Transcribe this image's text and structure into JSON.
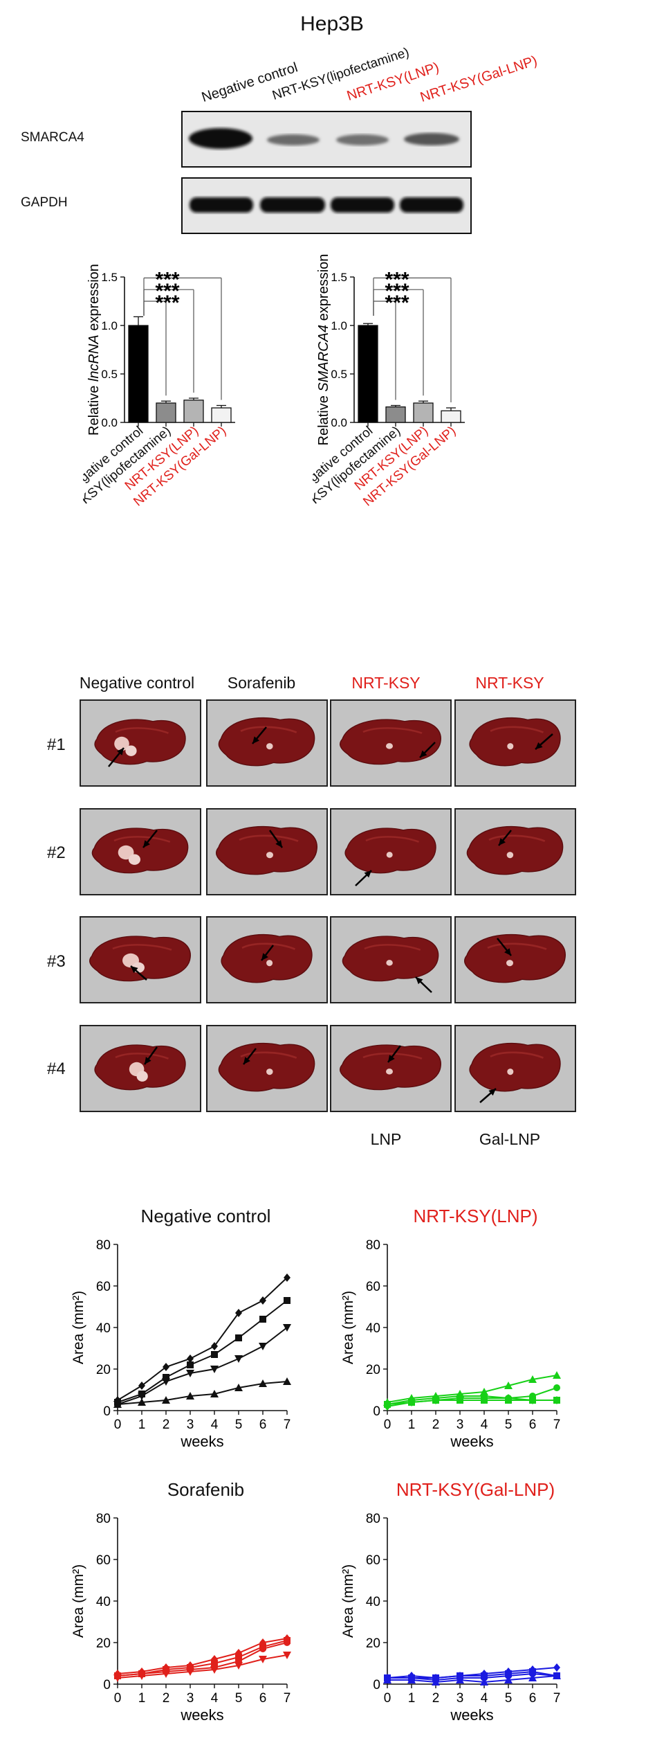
{
  "western": {
    "cell_line": "Hep3B",
    "lanes": [
      {
        "label": "Negative control",
        "color": "#111111"
      },
      {
        "label": "NRT-KSY(lipofectamine)",
        "color": "#111111"
      },
      {
        "label": "NRT-KSY(LNP)",
        "color": "#e0201b"
      },
      {
        "label": "NRT-KSY(Gal-LNP)",
        "color": "#e0201b"
      }
    ],
    "rows": [
      {
        "label": "SMARCA4",
        "band_strength": [
          1.0,
          0.3,
          0.3,
          0.4
        ]
      },
      {
        "label": "GAPDH",
        "band_strength": [
          1.0,
          1.0,
          1.0,
          1.0
        ]
      }
    ]
  },
  "images": {
    "column_headers": [
      "Negative control",
      "Sorafenib",
      "NRT-KSY",
      "NRT-KSY"
    ],
    "column_header_colors": [
      "#111111",
      "#111111",
      "#e0201b",
      "#e0201b"
    ],
    "row_labels": [
      "#1",
      "#2",
      "#3",
      "#4"
    ],
    "footer_labels": [
      "",
      "",
      "LNP",
      "Gal-LNP"
    ]
  },
  "chart_data": [
    {
      "type": "bar",
      "ylabel_pre": "Relative ",
      "ylabel_italic": "lncRNA",
      "ylabel_post": " expression",
      "categories": [
        "Negative control",
        "NRT-KSY(lipofectamine)",
        "NRT-KSY(LNP)",
        "NRT-KSY(Gal-LNP)"
      ],
      "category_colors": [
        "#111111",
        "#111111",
        "#e0201b",
        "#e0201b"
      ],
      "values": [
        1.0,
        0.2,
        0.23,
        0.15
      ],
      "errors": [
        0.09,
        0.02,
        0.02,
        0.025
      ],
      "bar_fills": [
        "#000000",
        "#8c8c8c",
        "#b4b4b4",
        "#f2f2f2"
      ],
      "ylim": [
        0,
        1.5
      ],
      "yticks": [
        "0.0",
        "0.5",
        "1.0",
        "1.5"
      ],
      "significance": [
        "***",
        "***",
        "***"
      ]
    },
    {
      "type": "bar",
      "ylabel_pre": "Relative ",
      "ylabel_italic": "SMARCA4",
      "ylabel_post": " expression",
      "categories": [
        "Negative control",
        "NRT-KSY(lipofectamine)",
        "NRT-KSY(LNP)",
        "NRT-KSY(Gal-LNP)"
      ],
      "category_colors": [
        "#111111",
        "#111111",
        "#e0201b",
        "#e0201b"
      ],
      "values": [
        1.0,
        0.16,
        0.2,
        0.12
      ],
      "errors": [
        0.02,
        0.015,
        0.02,
        0.03
      ],
      "bar_fills": [
        "#000000",
        "#8c8c8c",
        "#b4b4b4",
        "#f2f2f2"
      ],
      "ylim": [
        0,
        1.5
      ],
      "yticks": [
        "0.0",
        "0.5",
        "1.0",
        "1.5"
      ],
      "significance": [
        "***",
        "***",
        "***"
      ]
    },
    {
      "type": "line",
      "title": "Negative control",
      "title_color": "#111111",
      "series_color": "#111111",
      "x": [
        0,
        1,
        2,
        3,
        4,
        5,
        6,
        7
      ],
      "xlabel": "weeks",
      "ylabel": "Area (mm²)",
      "ylim": [
        0,
        80
      ],
      "yticks": [
        "0",
        "20",
        "40",
        "60",
        "80"
      ],
      "series": [
        {
          "marker": "diamond",
          "values": [
            5,
            12,
            21,
            25,
            31,
            47,
            53,
            64
          ]
        },
        {
          "marker": "square",
          "values": [
            4,
            8,
            16,
            22,
            27,
            35,
            44,
            53
          ]
        },
        {
          "marker": "tri-down",
          "values": [
            3,
            7,
            14,
            18,
            20,
            25,
            31,
            40
          ]
        },
        {
          "marker": "tri-up",
          "values": [
            3,
            4,
            5,
            7,
            8,
            11,
            13,
            14
          ]
        }
      ]
    },
    {
      "type": "line",
      "title": "NRT-KSY(LNP)",
      "title_color": "#e0201b",
      "series_color": "#17d017",
      "x": [
        0,
        1,
        2,
        3,
        4,
        5,
        6,
        7
      ],
      "xlabel": "weeks",
      "ylabel": "Area (mm²)",
      "ylim": [
        0,
        80
      ],
      "yticks": [
        "0",
        "20",
        "40",
        "60",
        "80"
      ],
      "series": [
        {
          "marker": "tri-up",
          "values": [
            4,
            6,
            7,
            8,
            9,
            12,
            15,
            17
          ]
        },
        {
          "marker": "circle",
          "values": [
            3,
            5,
            6,
            7,
            7,
            6,
            7,
            11
          ]
        },
        {
          "marker": "square",
          "values": [
            3,
            4,
            5,
            5,
            5,
            5,
            5,
            5
          ]
        },
        {
          "marker": "diamond",
          "values": [
            2,
            4,
            5,
            6,
            6,
            6,
            5,
            5
          ]
        }
      ]
    },
    {
      "type": "line",
      "title": "Sorafenib",
      "title_color": "#111111",
      "series_color": "#e0201b",
      "x": [
        0,
        1,
        2,
        3,
        4,
        5,
        6,
        7
      ],
      "xlabel": "weeks",
      "ylabel": "Area (mm²)",
      "ylim": [
        0,
        80
      ],
      "yticks": [
        "0",
        "20",
        "40",
        "60",
        "80"
      ],
      "series": [
        {
          "marker": "diamond",
          "values": [
            5,
            6,
            8,
            9,
            12,
            15,
            20,
            22
          ]
        },
        {
          "marker": "square",
          "values": [
            4,
            5,
            7,
            8,
            10,
            13,
            18,
            21
          ]
        },
        {
          "marker": "circle",
          "values": [
            4,
            5,
            6,
            7,
            8,
            11,
            17,
            20
          ]
        },
        {
          "marker": "tri-down",
          "values": [
            3,
            4,
            5,
            6,
            7,
            9,
            12,
            14
          ]
        }
      ]
    },
    {
      "type": "line",
      "title": "NRT-KSY(Gal-LNP)",
      "title_color": "#e0201b",
      "series_color": "#1a1ae0",
      "x": [
        0,
        1,
        2,
        3,
        4,
        5,
        6,
        7
      ],
      "xlabel": "weeks",
      "ylabel": "Area (mm²)",
      "ylim": [
        0,
        80
      ],
      "yticks": [
        "0",
        "20",
        "40",
        "60",
        "80"
      ],
      "series": [
        {
          "marker": "diamond",
          "values": [
            3,
            4,
            3,
            4,
            5,
            6,
            7,
            8
          ]
        },
        {
          "marker": "square",
          "values": [
            3,
            3,
            3,
            4,
            4,
            5,
            6,
            4
          ]
        },
        {
          "marker": "circle",
          "values": [
            3,
            3,
            2,
            3,
            3,
            4,
            5,
            4
          ]
        },
        {
          "marker": "tri-up",
          "values": [
            2,
            2,
            1,
            2,
            1,
            2,
            3,
            4
          ]
        }
      ]
    }
  ]
}
